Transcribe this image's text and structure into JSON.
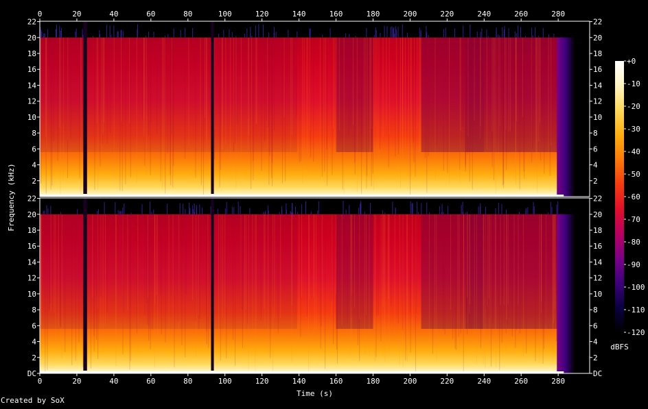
{
  "app": {
    "credit": "Created by SoX"
  },
  "chart_data": {
    "type": "heatmap",
    "title": "",
    "xlabel": "Time (s)",
    "ylabel": "Frequency (kHz)",
    "colorbar_label": "dBFS",
    "xlim": [
      0,
      297
    ],
    "ylim": [
      0,
      22.05
    ],
    "x_ticks": [
      "0",
      "20",
      "40",
      "60",
      "80",
      "100",
      "120",
      "140",
      "160",
      "180",
      "200",
      "220",
      "240",
      "260",
      "280"
    ],
    "x_tick_values": [
      0,
      20,
      40,
      60,
      80,
      100,
      120,
      140,
      160,
      180,
      200,
      220,
      240,
      260,
      280
    ],
    "y_ticks_top": [
      "2",
      "4",
      "6",
      "8",
      "10",
      "12",
      "14",
      "16",
      "18",
      "20",
      "22"
    ],
    "y_ticks_top_values": [
      2,
      4,
      6,
      8,
      10,
      12,
      14,
      16,
      18,
      20,
      22
    ],
    "y_ticks_bottom": [
      "DC",
      "2",
      "4",
      "6",
      "8",
      "10",
      "12",
      "14",
      "16",
      "18",
      "20",
      "22"
    ],
    "y_ticks_bottom_values": [
      0,
      2,
      4,
      6,
      8,
      10,
      12,
      14,
      16,
      18,
      20,
      22
    ],
    "colorbar_ticks": [
      "+0",
      "-10",
      "-20",
      "-30",
      "-40",
      "-50",
      "-60",
      "-70",
      "-80",
      "-90",
      "-100",
      "-110",
      "-120"
    ],
    "colorbar_values": [
      0,
      -10,
      -20,
      -30,
      -40,
      -50,
      -60,
      -70,
      -80,
      -90,
      -100,
      -110,
      -120
    ],
    "channels": [
      "left",
      "right"
    ],
    "cutoff_khz": 20,
    "audio_end_s": 283,
    "silence_gaps_s": [
      [
        23.5,
        25.5
      ],
      [
        92.5,
        94
      ]
    ],
    "segments": [
      {
        "start": 0,
        "end": 23.5,
        "level_db": -48
      },
      {
        "start": 25.5,
        "end": 92.5,
        "level_db": -47
      },
      {
        "start": 94,
        "end": 139,
        "level_db": -47
      },
      {
        "start": 139,
        "end": 160,
        "level_db": -44
      },
      {
        "start": 160,
        "end": 180,
        "level_db": -52
      },
      {
        "start": 180,
        "end": 206,
        "level_db": -44
      },
      {
        "start": 206,
        "end": 230,
        "level_db": -53
      },
      {
        "start": 230,
        "end": 240,
        "level_db": -58
      },
      {
        "start": 240,
        "end": 283,
        "level_db": -54
      }
    ],
    "colors": {
      "colormap": [
        "#000000",
        "#0a0040",
        "#3c007a",
        "#7a0086",
        "#b80060",
        "#e0102a",
        "#f53c10",
        "#fb7a08",
        "#ffae10",
        "#ffd85a",
        "#fff4c0",
        "#ffffff"
      ],
      "axis": "#ffffff",
      "background": "#000000"
    }
  }
}
